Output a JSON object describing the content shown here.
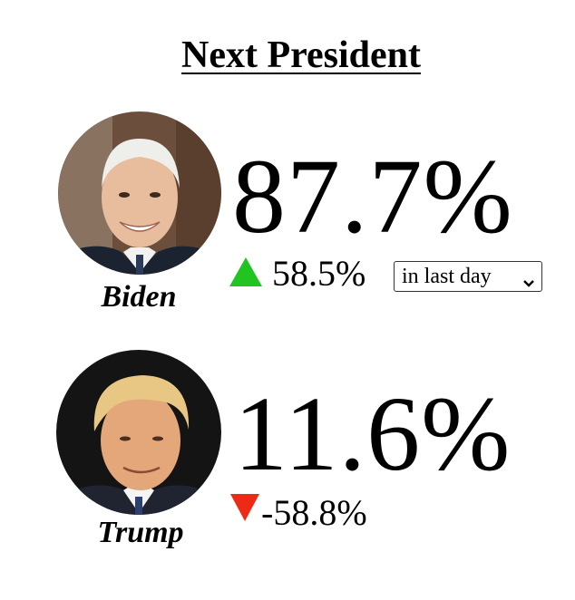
{
  "title": "Next President",
  "period_select": {
    "selected": "in last day",
    "icon": "chevron-down-icon"
  },
  "candidates": [
    {
      "name": "Biden",
      "probability": "87.7%",
      "change": "58.5%",
      "direction": "up",
      "arrow_icon": "triangle-up-icon",
      "arrow_color": "#22c422"
    },
    {
      "name": "Trump",
      "probability": "11.6%",
      "change": "-58.8%",
      "direction": "down",
      "arrow_icon": "triangle-down-icon",
      "arrow_color": "#ee2a16"
    }
  ]
}
